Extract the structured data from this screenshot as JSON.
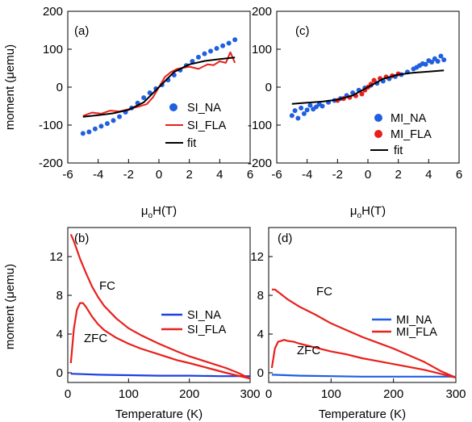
{
  "figure": {
    "panels": [
      {
        "id": "a",
        "tag": "(a)",
        "ylabel": "moment (μemu)",
        "xlabel": "μ_oH(T)",
        "xlim": [
          -6,
          6
        ],
        "ylim": [
          -200,
          200
        ],
        "xticks": [
          -6,
          -4,
          -2,
          0,
          2,
          4,
          6
        ],
        "yticks": [
          -200,
          -100,
          0,
          100,
          200
        ],
        "legend": [
          {
            "label": "SI_NA",
            "kind": "dot",
            "color": "#1f5fe0"
          },
          {
            "label": "SI_FLA",
            "kind": "line",
            "color": "#e8201c"
          },
          {
            "label": "fit",
            "kind": "line",
            "color": "#000000"
          }
        ]
      },
      {
        "id": "c",
        "tag": "(c)",
        "xlabel": "μ_oH(T)",
        "xlim": [
          -6,
          6
        ],
        "ylim": [
          -200,
          200
        ],
        "xticks": [
          -6,
          -4,
          -2,
          0,
          2,
          4,
          6
        ],
        "yticks": [
          -200,
          -100,
          0,
          100,
          200
        ],
        "legend": [
          {
            "label": "MI_NA",
            "kind": "dot",
            "color": "#1f5fe0"
          },
          {
            "label": "MI_FLA",
            "kind": "dot",
            "color": "#e8201c"
          },
          {
            "label": "fit",
            "kind": "line",
            "color": "#000000"
          }
        ]
      },
      {
        "id": "b",
        "tag": "(b)",
        "ylabel": "moment (μemu)",
        "xlabel": "Temperature (K)",
        "xlim": [
          0,
          300
        ],
        "ylim": [
          -1,
          15
        ],
        "xticks": [
          0,
          100,
          200,
          300
        ],
        "yticks": [
          0,
          4,
          8,
          12
        ],
        "annotations": [
          "FC",
          "ZFC"
        ],
        "legend": [
          {
            "label": "SI_NA",
            "kind": "line",
            "color": "#1f3fe0"
          },
          {
            "label": "SI_FLA",
            "kind": "line",
            "color": "#e8201c"
          }
        ]
      },
      {
        "id": "d",
        "tag": "(d)",
        "xlabel": "Temperature (K)",
        "xlim": [
          0,
          300
        ],
        "ylim": [
          -1,
          15
        ],
        "xticks": [
          0,
          100,
          200,
          300
        ],
        "yticks": [
          0,
          4,
          8,
          12
        ],
        "annotations": [
          "FC",
          "ZFC"
        ],
        "legend": [
          {
            "label": "MI_NA",
            "kind": "line",
            "color": "#1f5fe0"
          },
          {
            "label": "MI_FLA",
            "kind": "line",
            "color": "#e8201c"
          }
        ]
      }
    ]
  },
  "chart_data": [
    {
      "type": "scatter",
      "panel": "(a)",
      "xlabel": "μoH(T)",
      "ylabel": "moment (μemu)",
      "xlim": [
        -6,
        6
      ],
      "ylim": [
        -200,
        200
      ],
      "series": [
        {
          "name": "SI_NA",
          "type": "scatter",
          "color": "#1f5fe0",
          "x": [
            -5.0,
            -4.6,
            -4.2,
            -3.8,
            -3.4,
            -3.0,
            -2.6,
            -2.2,
            -1.8,
            -1.4,
            -1.0,
            -0.6,
            -0.2,
            0.2,
            0.6,
            1.0,
            1.4,
            1.8,
            2.2,
            2.6,
            3.0,
            3.4,
            3.8,
            4.2,
            4.6,
            5.0
          ],
          "y": [
            -122,
            -118,
            -110,
            -103,
            -96,
            -88,
            -78,
            -66,
            -55,
            -42,
            -28,
            -15,
            -4,
            6,
            19,
            32,
            45,
            57,
            68,
            79,
            88,
            95,
            102,
            109,
            116,
            125
          ]
        },
        {
          "name": "SI_FLA",
          "type": "line",
          "color": "#e8201c",
          "x": [
            -5.0,
            -4.4,
            -3.8,
            -3.2,
            -2.6,
            -2.0,
            -1.4,
            -0.8,
            -0.4,
            0.0,
            0.4,
            0.8,
            1.2,
            1.6,
            2.0,
            2.6,
            3.2,
            3.6,
            4.0,
            4.4,
            4.7,
            5.0
          ],
          "y": [
            -76,
            -67,
            -70,
            -62,
            -64,
            -58,
            -52,
            -45,
            -27,
            0,
            27,
            40,
            48,
            51,
            54,
            48,
            60,
            58,
            68,
            64,
            92,
            64
          ]
        },
        {
          "name": "fit",
          "type": "line",
          "color": "#000000",
          "x": [
            -5,
            -4,
            -3,
            -2,
            -1,
            0,
            1,
            2,
            3,
            4,
            5
          ],
          "y": [
            -78,
            -74,
            -69,
            -60,
            -40,
            0,
            40,
            60,
            69,
            74,
            78
          ]
        }
      ]
    },
    {
      "type": "scatter",
      "panel": "(c)",
      "xlabel": "μoH(T)",
      "xlim": [
        -6,
        6
      ],
      "ylim": [
        -200,
        200
      ],
      "series": [
        {
          "name": "MI_NA",
          "type": "scatter",
          "color": "#1f5fe0",
          "x": [
            -5.0,
            -4.8,
            -4.6,
            -4.4,
            -4.2,
            -4.0,
            -3.8,
            -3.6,
            -3.4,
            -3.2,
            -3.0,
            -2.6,
            -2.2,
            -1.8,
            -1.4,
            -1.0,
            -0.6,
            -0.2,
            0.2,
            0.6,
            1.0,
            1.4,
            1.8,
            2.2,
            2.6,
            3.0,
            3.2,
            3.4,
            3.6,
            3.8,
            4.0,
            4.2,
            4.4,
            4.6,
            4.8,
            5.0
          ],
          "y": [
            -75,
            -62,
            -82,
            -55,
            -70,
            -60,
            -48,
            -58,
            -52,
            -45,
            -50,
            -40,
            -35,
            -30,
            -22,
            -15,
            -8,
            -2,
            5,
            10,
            16,
            22,
            28,
            33,
            40,
            48,
            52,
            57,
            62,
            60,
            70,
            66,
            75,
            68,
            82,
            72
          ]
        },
        {
          "name": "MI_FLA",
          "type": "scatter",
          "color": "#e8201c",
          "x": [
            -2.0,
            -1.6,
            -1.2,
            -0.8,
            -0.4,
            -0.2,
            0.0,
            0.2,
            0.4,
            0.8,
            1.2,
            1.6,
            2.0
          ],
          "y": [
            -35,
            -30,
            -27,
            -23,
            -18,
            -8,
            0,
            8,
            18,
            23,
            27,
            30,
            35
          ]
        },
        {
          "name": "fit",
          "type": "line",
          "color": "#000000",
          "x": [
            -5,
            -4,
            -3,
            -2,
            -1,
            0,
            1,
            2,
            3,
            4,
            5
          ],
          "y": [
            -44,
            -41,
            -38,
            -33,
            -22,
            0,
            22,
            33,
            38,
            41,
            44
          ]
        }
      ]
    },
    {
      "type": "line",
      "panel": "(b)",
      "xlabel": "Temperature (K)",
      "ylabel": "moment (μemu)",
      "xlim": [
        0,
        300
      ],
      "ylim": [
        -1,
        15
      ],
      "series": [
        {
          "name": "SI_NA",
          "color": "#1f3fe0",
          "x": [
            5,
            50,
            100,
            150,
            200,
            250,
            300
          ],
          "y": [
            -0.1,
            -0.2,
            -0.25,
            -0.3,
            -0.3,
            -0.35,
            -0.35
          ]
        },
        {
          "name": "SI_FLA (FC)",
          "color": "#e8201c",
          "x": [
            5,
            10,
            20,
            30,
            40,
            50,
            60,
            80,
            100,
            120,
            150,
            180,
            200,
            230,
            260,
            280,
            300
          ],
          "y": [
            14.3,
            13.6,
            11.8,
            10.3,
            8.9,
            7.8,
            6.9,
            5.6,
            4.6,
            3.9,
            3.0,
            2.2,
            1.7,
            1.1,
            0.5,
            0.0,
            -0.6
          ]
        },
        {
          "name": "SI_FLA (ZFC)",
          "color": "#e8201c",
          "x": [
            5,
            10,
            15,
            20,
            25,
            30,
            40,
            50,
            60,
            80,
            100,
            120,
            150,
            180,
            200,
            230,
            260,
            280,
            300
          ],
          "y": [
            1.0,
            4.5,
            6.5,
            7.2,
            7.2,
            6.8,
            5.8,
            5.0,
            4.4,
            3.6,
            3.0,
            2.5,
            1.9,
            1.3,
            1.0,
            0.5,
            0.0,
            -0.3,
            -0.6
          ]
        }
      ]
    },
    {
      "type": "line",
      "panel": "(d)",
      "xlabel": "Temperature (K)",
      "xlim": [
        0,
        300
      ],
      "ylim": [
        -1,
        15
      ],
      "series": [
        {
          "name": "MI_NA",
          "color": "#1f5fe0",
          "x": [
            5,
            50,
            100,
            150,
            200,
            250,
            300
          ],
          "y": [
            -0.2,
            -0.3,
            -0.35,
            -0.4,
            -0.4,
            -0.4,
            -0.4
          ]
        },
        {
          "name": "MI_FLA (FC)",
          "color": "#e8201c",
          "x": [
            5,
            10,
            20,
            30,
            50,
            75,
            100,
            125,
            150,
            175,
            200,
            225,
            250,
            275,
            300
          ],
          "y": [
            8.6,
            8.6,
            8.1,
            7.6,
            6.8,
            6.0,
            5.1,
            4.4,
            3.7,
            3.1,
            2.5,
            1.8,
            1.1,
            0.2,
            -0.5
          ]
        },
        {
          "name": "MI_FLA (ZFC)",
          "color": "#e8201c",
          "x": [
            5,
            10,
            15,
            20,
            25,
            30,
            40,
            50,
            75,
            100,
            125,
            150,
            175,
            200,
            225,
            250,
            275,
            300
          ],
          "y": [
            0.5,
            2.5,
            3.2,
            3.3,
            3.4,
            3.3,
            3.2,
            3.0,
            2.6,
            2.2,
            1.9,
            1.5,
            1.2,
            0.9,
            0.6,
            0.3,
            -0.1,
            -0.5
          ]
        }
      ]
    }
  ]
}
